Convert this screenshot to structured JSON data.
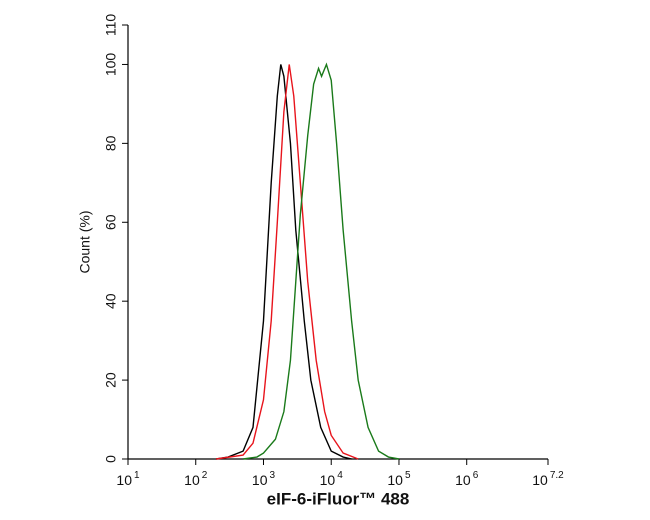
{
  "chart_data": {
    "type": "line",
    "x_label": "eIF-6-iFluor™ 488",
    "y_label": "Count  (%)",
    "xscale": "log",
    "xlim": [
      10,
      15848932
    ],
    "xticks": [
      {
        "value": 10,
        "label": "10",
        "exponent": "1"
      },
      {
        "value": 100,
        "label": "10",
        "exponent": "2"
      },
      {
        "value": 1000,
        "label": "10",
        "exponent": "3"
      },
      {
        "value": 10000,
        "label": "10",
        "exponent": "4"
      },
      {
        "value": 100000,
        "label": "10",
        "exponent": "5"
      },
      {
        "value": 1000000,
        "label": "10",
        "exponent": "6"
      },
      {
        "value": 15848932,
        "label": "10",
        "exponent": "7.2"
      }
    ],
    "ylim": [
      0,
      110
    ],
    "yticks": [
      0,
      20,
      40,
      60,
      80,
      100,
      110
    ],
    "grid": false,
    "series": [
      {
        "color": "#000000",
        "x": [
          200,
          300,
          500,
          700,
          1000,
          1300,
          1600,
          1800,
          2000,
          2500,
          3000,
          4000,
          5000,
          7000,
          10000,
          15000,
          20000
        ],
        "values": [
          0,
          0.5,
          2,
          8,
          35,
          70,
          92,
          100,
          97,
          80,
          58,
          35,
          20,
          8,
          2,
          0.5,
          0
        ]
      },
      {
        "color": "#e8141c",
        "x": [
          200,
          500,
          700,
          1000,
          1300,
          1600,
          2000,
          2400,
          2800,
          3500,
          4500,
          6000,
          8000,
          10000,
          15000,
          25000
        ],
        "values": [
          0,
          1,
          4,
          15,
          35,
          60,
          88,
          100,
          92,
          70,
          45,
          25,
          12,
          6,
          1.5,
          0
        ]
      },
      {
        "color": "#1a7a1a",
        "x": [
          500,
          800,
          1000,
          1500,
          2000,
          2500,
          3000,
          3500,
          4500,
          5500,
          6500,
          7200,
          8500,
          10000,
          12000,
          15000,
          20000,
          25000,
          35000,
          50000,
          70000,
          100000
        ],
        "values": [
          0,
          0.5,
          1.5,
          5,
          12,
          25,
          45,
          62,
          82,
          95,
          99,
          97,
          100,
          96,
          80,
          58,
          35,
          20,
          8,
          2,
          0.5,
          0
        ]
      }
    ]
  }
}
